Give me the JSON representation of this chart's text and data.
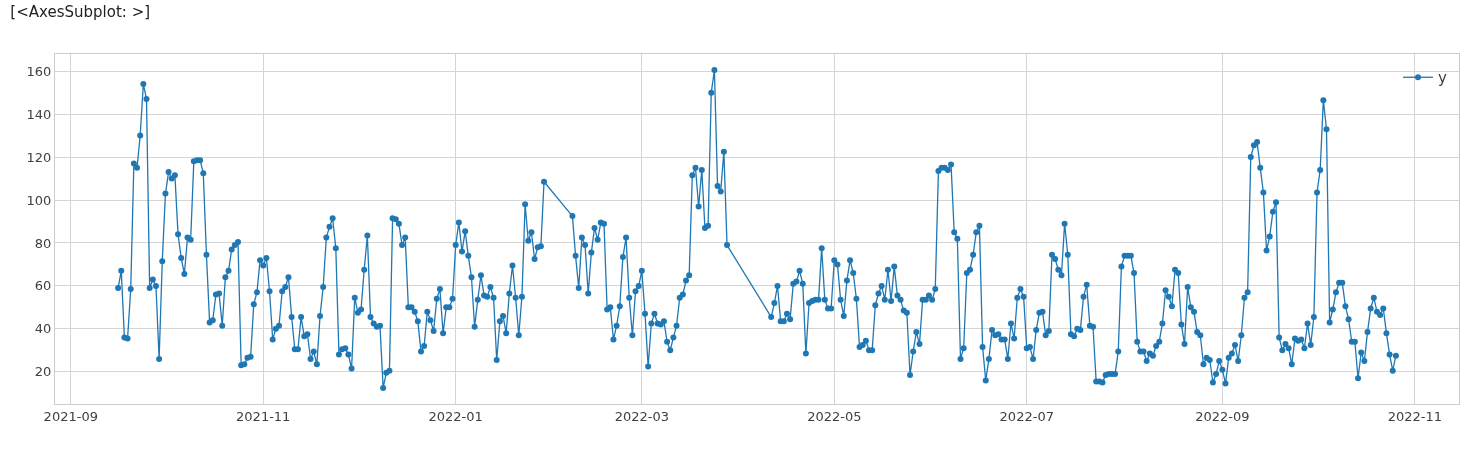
{
  "chart_data": {
    "type": "line",
    "title": "[<AxesSubplot: >]",
    "x": [
      "2021-09-16",
      "2021-09-17",
      "2021-09-18",
      "2021-09-19",
      "2021-09-20",
      "2021-09-21",
      "2021-09-22",
      "2021-09-23",
      "2021-09-24",
      "2021-09-25",
      "2021-09-26",
      "2021-09-27",
      "2021-09-28",
      "2021-09-29",
      "2021-09-30",
      "2021-10-01",
      "2021-10-02",
      "2021-10-03",
      "2021-10-04",
      "2021-10-05",
      "2021-10-06",
      "2021-10-07",
      "2021-10-08",
      "2021-10-09",
      "2021-10-10",
      "2021-10-11",
      "2021-10-12",
      "2021-10-13",
      "2021-10-14",
      "2021-10-15",
      "2021-10-16",
      "2021-10-17",
      "2021-10-18",
      "2021-10-19",
      "2021-10-20",
      "2021-10-21",
      "2021-10-22",
      "2021-10-23",
      "2021-10-24",
      "2021-10-25",
      "2021-10-26",
      "2021-10-27",
      "2021-10-28",
      "2021-10-29",
      "2021-10-30",
      "2021-10-31",
      "2021-11-01",
      "2021-11-02",
      "2021-11-03",
      "2021-11-04",
      "2021-11-05",
      "2021-11-06",
      "2021-11-07",
      "2021-11-08",
      "2021-11-09",
      "2021-11-10",
      "2021-11-11",
      "2021-11-12",
      "2021-11-13",
      "2021-11-14",
      "2021-11-15",
      "2021-11-16",
      "2021-11-17",
      "2021-11-18",
      "2021-11-19",
      "2021-11-20",
      "2021-11-21",
      "2021-11-22",
      "2021-11-23",
      "2021-11-24",
      "2021-11-25",
      "2021-11-26",
      "2021-11-27",
      "2021-11-28",
      "2021-11-29",
      "2021-11-30",
      "2021-12-01",
      "2021-12-02",
      "2021-12-03",
      "2021-12-04",
      "2021-12-05",
      "2021-12-06",
      "2021-12-07",
      "2021-12-08",
      "2021-12-09",
      "2021-12-10",
      "2021-12-11",
      "2021-12-12",
      "2021-12-13",
      "2021-12-14",
      "2021-12-15",
      "2021-12-16",
      "2021-12-17",
      "2021-12-18",
      "2021-12-19",
      "2021-12-20",
      "2021-12-21",
      "2021-12-22",
      "2021-12-23",
      "2021-12-24",
      "2021-12-25",
      "2021-12-26",
      "2021-12-27",
      "2021-12-28",
      "2021-12-29",
      "2021-12-30",
      "2021-12-31",
      "2022-01-01",
      "2022-01-02",
      "2022-01-03",
      "2022-01-04",
      "2022-01-05",
      "2022-01-06",
      "2022-01-07",
      "2022-01-08",
      "2022-01-09",
      "2022-01-10",
      "2022-01-11",
      "2022-01-12",
      "2022-01-13",
      "2022-01-14",
      "2022-01-15",
      "2022-01-16",
      "2022-01-17",
      "2022-01-18",
      "2022-01-19",
      "2022-01-20",
      "2022-01-21",
      "2022-01-22",
      "2022-01-23",
      "2022-01-24",
      "2022-01-25",
      "2022-01-26",
      "2022-01-27",
      "2022-01-28",
      "2022-01-29",
      "2022-02-07",
      "2022-02-08",
      "2022-02-09",
      "2022-02-10",
      "2022-02-11",
      "2022-02-12",
      "2022-02-13",
      "2022-02-14",
      "2022-02-15",
      "2022-02-16",
      "2022-02-17",
      "2022-02-18",
      "2022-02-19",
      "2022-02-20",
      "2022-02-21",
      "2022-02-22",
      "2022-02-23",
      "2022-02-24",
      "2022-02-25",
      "2022-02-26",
      "2022-02-27",
      "2022-02-28",
      "2022-03-01",
      "2022-03-02",
      "2022-03-03",
      "2022-03-04",
      "2022-03-05",
      "2022-03-06",
      "2022-03-07",
      "2022-03-08",
      "2022-03-09",
      "2022-03-10",
      "2022-03-11",
      "2022-03-12",
      "2022-03-13",
      "2022-03-14",
      "2022-03-15",
      "2022-03-16",
      "2022-03-17",
      "2022-03-18",
      "2022-03-19",
      "2022-03-20",
      "2022-03-21",
      "2022-03-22",
      "2022-03-23",
      "2022-03-24",
      "2022-03-25",
      "2022-03-26",
      "2022-03-27",
      "2022-03-28",
      "2022-04-11",
      "2022-04-12",
      "2022-04-13",
      "2022-04-14",
      "2022-04-15",
      "2022-04-16",
      "2022-04-17",
      "2022-04-18",
      "2022-04-19",
      "2022-04-20",
      "2022-04-21",
      "2022-04-22",
      "2022-04-23",
      "2022-04-24",
      "2022-04-25",
      "2022-04-26",
      "2022-04-27",
      "2022-04-28",
      "2022-04-29",
      "2022-04-30",
      "2022-05-01",
      "2022-05-02",
      "2022-05-03",
      "2022-05-04",
      "2022-05-05",
      "2022-05-06",
      "2022-05-07",
      "2022-05-08",
      "2022-05-09",
      "2022-05-10",
      "2022-05-11",
      "2022-05-12",
      "2022-05-13",
      "2022-05-14",
      "2022-05-15",
      "2022-05-16",
      "2022-05-17",
      "2022-05-18",
      "2022-05-19",
      "2022-05-20",
      "2022-05-21",
      "2022-05-22",
      "2022-05-23",
      "2022-05-24",
      "2022-05-25",
      "2022-05-26",
      "2022-05-27",
      "2022-05-28",
      "2022-05-29",
      "2022-05-30",
      "2022-05-31",
      "2022-06-01",
      "2022-06-02",
      "2022-06-03",
      "2022-06-04",
      "2022-06-05",
      "2022-06-06",
      "2022-06-07",
      "2022-06-08",
      "2022-06-09",
      "2022-06-10",
      "2022-06-11",
      "2022-06-12",
      "2022-06-13",
      "2022-06-14",
      "2022-06-15",
      "2022-06-16",
      "2022-06-17",
      "2022-06-18",
      "2022-06-19",
      "2022-06-20",
      "2022-06-21",
      "2022-06-22",
      "2022-06-23",
      "2022-06-24",
      "2022-06-25",
      "2022-06-26",
      "2022-06-27",
      "2022-06-28",
      "2022-06-29",
      "2022-06-30",
      "2022-07-01",
      "2022-07-02",
      "2022-07-03",
      "2022-07-04",
      "2022-07-05",
      "2022-07-06",
      "2022-07-07",
      "2022-07-08",
      "2022-07-09",
      "2022-07-10",
      "2022-07-11",
      "2022-07-12",
      "2022-07-13",
      "2022-07-14",
      "2022-07-15",
      "2022-07-16",
      "2022-07-17",
      "2022-07-18",
      "2022-07-19",
      "2022-07-20",
      "2022-07-21",
      "2022-07-22",
      "2022-07-23",
      "2022-07-24",
      "2022-07-25",
      "2022-07-26",
      "2022-07-27",
      "2022-07-28",
      "2022-07-29",
      "2022-07-30",
      "2022-07-31",
      "2022-08-01",
      "2022-08-02",
      "2022-08-03",
      "2022-08-04",
      "2022-08-05",
      "2022-08-06",
      "2022-08-07",
      "2022-08-08",
      "2022-08-09",
      "2022-08-10",
      "2022-08-11",
      "2022-08-12",
      "2022-08-13",
      "2022-08-14",
      "2022-08-15",
      "2022-08-16",
      "2022-08-17",
      "2022-08-18",
      "2022-08-19",
      "2022-08-20",
      "2022-08-21",
      "2022-08-22",
      "2022-08-23",
      "2022-08-24",
      "2022-08-25",
      "2022-08-26",
      "2022-08-27",
      "2022-08-28",
      "2022-08-29",
      "2022-08-30",
      "2022-08-31",
      "2022-09-01",
      "2022-09-02",
      "2022-09-03",
      "2022-09-04",
      "2022-09-05",
      "2022-09-06",
      "2022-09-07",
      "2022-09-08",
      "2022-09-09",
      "2022-09-10",
      "2022-09-11",
      "2022-09-12",
      "2022-09-13",
      "2022-09-14",
      "2022-09-15",
      "2022-09-16",
      "2022-09-17",
      "2022-09-18",
      "2022-09-19",
      "2022-09-20",
      "2022-09-21",
      "2022-09-22",
      "2022-09-23",
      "2022-09-24",
      "2022-09-25",
      "2022-09-26",
      "2022-09-27",
      "2022-09-28",
      "2022-09-29",
      "2022-09-30",
      "2022-10-01",
      "2022-10-02",
      "2022-10-03",
      "2022-10-04",
      "2022-10-05",
      "2022-10-06",
      "2022-10-07",
      "2022-10-08",
      "2022-10-09",
      "2022-10-10",
      "2022-10-11",
      "2022-10-12",
      "2022-10-13",
      "2022-10-14",
      "2022-10-15",
      "2022-10-16",
      "2022-10-17",
      "2022-10-18",
      "2022-10-19",
      "2022-10-20",
      "2022-10-21",
      "2022-10-22",
      "2022-10-23",
      "2022-10-24",
      "2022-10-25",
      "2022-10-26"
    ],
    "series": [
      {
        "name": "y",
        "color": "#1f77b4",
        "values": [
          59,
          67,
          36,
          35.5,
          58.5,
          117,
          115,
          130,
          154,
          147,
          59,
          63,
          60,
          26,
          71.5,
          103,
          113,
          110,
          111.5,
          84,
          73,
          65.5,
          82.5,
          81.5,
          118,
          118.5,
          118.5,
          112.5,
          74.5,
          43,
          44,
          56,
          56.5,
          41.5,
          64,
          67,
          77,
          79,
          80.5,
          23,
          23.5,
          26.5,
          27,
          51.5,
          57,
          72,
          69.5,
          73,
          57.5,
          35,
          40,
          41.5,
          57.5,
          59.5,
          64,
          45.5,
          30.5,
          30.5,
          45.5,
          36.5,
          37.5,
          26,
          29.5,
          23.5,
          46,
          59.5,
          82.5,
          87.5,
          91.5,
          77.5,
          28,
          30.5,
          31,
          28,
          21.5,
          54.5,
          47.5,
          49,
          67.5,
          83.5,
          45.5,
          42.5,
          41,
          41.5,
          12.5,
          19.5,
          20.5,
          91.5,
          91,
          89,
          79,
          82.5,
          50,
          50,
          48,
          43.5,
          29.5,
          32,
          48,
          44,
          39,
          54,
          58.5,
          38,
          50,
          50,
          54,
          79,
          89.5,
          76,
          85.5,
          74,
          64,
          41,
          53.5,
          65,
          55.5,
          55,
          59.5,
          54.5,
          25.5,
          43.5,
          46,
          38,
          56.5,
          69.5,
          54.5,
          37,
          55,
          98,
          81,
          85,
          72.5,
          78,
          78.5,
          108.5,
          92.5,
          74,
          59,
          82.5,
          79,
          56.5,
          75.5,
          87,
          81.5,
          89.5,
          89,
          49,
          50,
          35,
          41.5,
          50.5,
          73.5,
          82.5,
          54.5,
          37,
          57.5,
          60,
          67,
          47,
          22.5,
          42.5,
          47,
          42.5,
          42,
          43.5,
          34,
          30,
          36,
          41.5,
          54.5,
          56,
          62.5,
          65,
          111.5,
          115,
          97,
          114,
          87,
          88,
          150,
          160.5,
          106.5,
          104,
          122.5,
          79,
          45.5,
          52,
          60,
          43.5,
          43.5,
          47,
          44.5,
          61,
          62,
          67,
          61,
          28.5,
          52,
          53,
          53.5,
          53.5,
          77.5,
          53.5,
          49.5,
          49.5,
          72,
          70,
          53.5,
          46,
          62.5,
          72,
          66,
          54,
          31.5,
          32.5,
          34.5,
          30,
          30,
          51,
          56.5,
          60,
          53.5,
          67.5,
          53,
          69,
          55.5,
          53.5,
          48.5,
          47.5,
          18.5,
          29.5,
          38.5,
          33,
          53.5,
          53.5,
          55.5,
          53.5,
          58.5,
          113.5,
          115,
          115,
          114,
          116.5,
          85,
          82,
          26,
          31,
          66,
          67.5,
          74.5,
          85,
          88,
          31.5,
          16,
          26,
          39.5,
          37,
          37.5,
          35,
          35,
          26,
          42.5,
          35.5,
          54.5,
          58.5,
          55,
          31,
          31.5,
          26,
          39.5,
          47.5,
          48,
          37,
          39,
          74.5,
          72.5,
          67.5,
          65,
          89,
          74.5,
          37.5,
          36.5,
          40,
          39.5,
          55,
          60.5,
          41.5,
          41,
          15.5,
          15.5,
          15,
          18.5,
          19,
          19,
          19,
          29.5,
          69,
          74,
          74,
          74,
          66,
          34,
          29.5,
          29.5,
          25,
          28.5,
          27.5,
          32,
          34,
          42.5,
          58,
          55,
          50.5,
          67.5,
          66,
          42,
          33,
          59.5,
          50,
          48,
          38.5,
          37,
          23.5,
          26.5,
          25.5,
          15,
          19,
          25,
          21,
          14.5,
          26.5,
          28.5,
          32.5,
          25,
          37,
          54.5,
          57,
          120,
          125.5,
          127,
          115,
          103.5,
          76.5,
          83,
          94.5,
          99,
          36,
          30,
          33,
          31,
          23.5,
          35.5,
          34.5,
          35,
          31,
          42.5,
          32.5,
          45.5,
          103.5,
          114,
          146.5,
          133,
          43,
          49,
          57,
          61.5,
          61.5,
          50.5,
          44.5,
          34,
          34,
          17,
          29,
          25,
          38.5,
          49.5,
          54.5,
          48,
          46.5,
          49.5,
          38,
          28,
          20.5,
          27.5
        ]
      }
    ],
    "xlim": [
      "2021-08-27",
      "2022-11-15"
    ],
    "xticks": [
      "2021-09",
      "2021-11",
      "2022-01",
      "2022-03",
      "2022-05",
      "2022-07",
      "2022-09",
      "2022-11"
    ],
    "ylim": [
      5,
      168
    ],
    "yticks": [
      20,
      40,
      60,
      80,
      100,
      120,
      140,
      160
    ],
    "grid": true,
    "legend": "top right",
    "marker": "circle",
    "line_style": "solid"
  }
}
